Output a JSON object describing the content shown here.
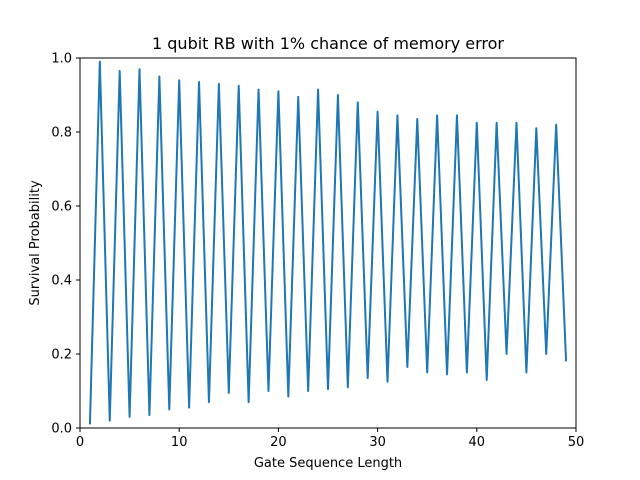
{
  "chart_data": {
    "type": "line",
    "title": "1 qubit RB with 1% chance of memory error",
    "xlabel": "Gate Sequence Length",
    "ylabel": "Survival Probability",
    "xlim": [
      0,
      50
    ],
    "ylim": [
      0.0,
      1.0
    ],
    "xticks": [
      0,
      10,
      20,
      30,
      40,
      50
    ],
    "xtick_labels": [
      "0",
      "10",
      "20",
      "30",
      "40",
      "50"
    ],
    "yticks": [
      0.0,
      0.2,
      0.4,
      0.6,
      0.8,
      1.0
    ],
    "ytick_labels": [
      "0.0",
      "0.2",
      "0.4",
      "0.6",
      "0.8",
      "1.0"
    ],
    "grid": false,
    "legend": "none",
    "series": [
      {
        "color": "#1f77b4",
        "x": [
          1,
          2,
          3,
          4,
          5,
          6,
          7,
          8,
          9,
          10,
          11,
          12,
          13,
          14,
          15,
          16,
          17,
          18,
          19,
          20,
          21,
          22,
          23,
          24,
          25,
          26,
          27,
          28,
          29,
          30,
          31,
          32,
          33,
          34,
          35,
          36,
          37,
          38,
          39,
          40,
          41,
          42,
          43,
          44,
          45,
          46,
          47,
          48,
          49
        ],
        "y": [
          0.01,
          0.99,
          0.02,
          0.965,
          0.03,
          0.97,
          0.035,
          0.95,
          0.05,
          0.94,
          0.055,
          0.935,
          0.07,
          0.93,
          0.095,
          0.925,
          0.07,
          0.915,
          0.1,
          0.91,
          0.085,
          0.895,
          0.1,
          0.915,
          0.105,
          0.9,
          0.11,
          0.88,
          0.135,
          0.855,
          0.125,
          0.845,
          0.165,
          0.835,
          0.15,
          0.845,
          0.145,
          0.845,
          0.15,
          0.825,
          0.13,
          0.825,
          0.2,
          0.825,
          0.15,
          0.81,
          0.2,
          0.82,
          0.18
        ]
      }
    ]
  }
}
